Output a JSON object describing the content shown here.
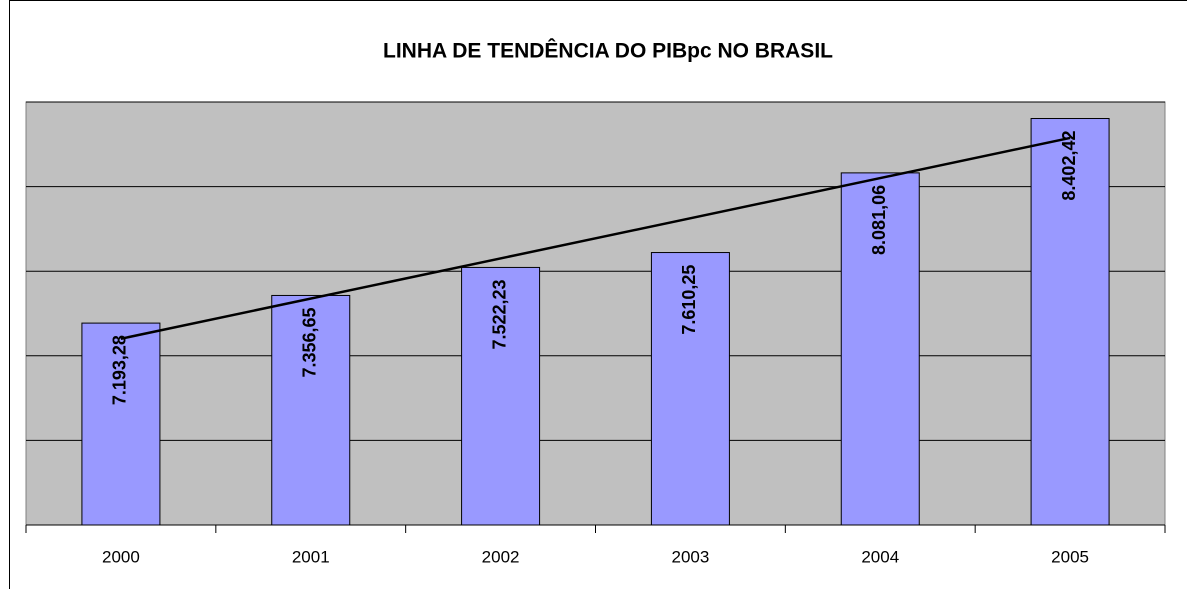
{
  "chart_data": {
    "type": "bar",
    "title": "LINHA DE TENDÊNCIA DO PIBpc NO BRASIL",
    "categories": [
      "2000",
      "2001",
      "2002",
      "2003",
      "2004",
      "2005"
    ],
    "values": [
      7193.28,
      7356.65,
      7522.23,
      7610.25,
      8081.06,
      8402.42
    ],
    "value_labels": [
      "7.193,28",
      "7.356,65",
      "7.522,23",
      "7.610,25",
      "8.081,06",
      "8.402,42"
    ],
    "color": "#9999ff",
    "ylim": [
      6000,
      8500
    ],
    "yticks": [
      6000,
      6500,
      7000,
      7500,
      8000,
      8500
    ],
    "grid": true,
    "trendline": "linear"
  }
}
